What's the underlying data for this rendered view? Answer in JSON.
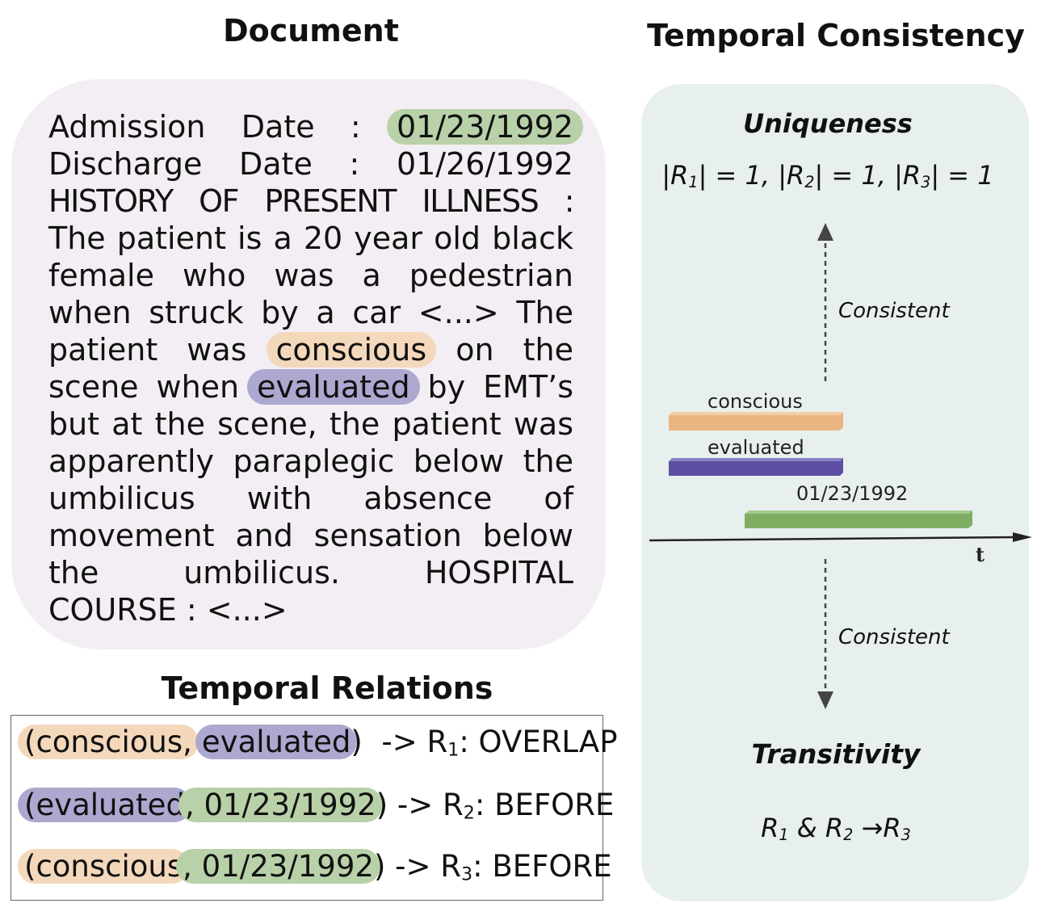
{
  "document": {
    "title": "Document",
    "lines": [
      [
        "Admission",
        "Date",
        ":"
      ],
      [
        "Discharge",
        "Date",
        ":",
        "01/26/1992"
      ],
      [
        "HISTORY OF PRESENT ILLNESS :"
      ],
      [
        "The patient is a 20 year old black"
      ],
      [
        "female",
        "who",
        "was",
        "a",
        "pedestrian"
      ],
      [
        "when struck by a car <...> The"
      ],
      [
        "patient",
        "was"
      ],
      [
        "scene when"
      ],
      [
        "but at the scene, the patient was"
      ],
      [
        "apparently paraplegic below the"
      ],
      [
        "umbilicus with absence of"
      ],
      [
        "movement and sensation below"
      ],
      [
        "the umbilicus. HOSPITAL"
      ],
      [
        "COURSE : <...>"
      ]
    ],
    "admission_date": "01/23/1992",
    "word_conscious": "conscious",
    "word_evaluated": "evaluated",
    "after_conscious": "on the",
    "after_evaluated": "by EMT’s"
  },
  "relations": {
    "title": "Temporal Relations",
    "items": [
      {
        "e1": "conscious",
        "e2": "evaluated",
        "rel": "OVERLAP",
        "r": "1"
      },
      {
        "e1": "evaluated",
        "e2": "01/23/1992",
        "rel": "BEFORE",
        "r": "2"
      },
      {
        "e1": "conscious",
        "e2": "01/23/1992",
        "rel": "BEFORE",
        "r": "3"
      }
    ]
  },
  "consistency": {
    "title": "Temporal Consistency",
    "uniqueness_title": "Uniqueness",
    "uniqueness_formula": "|R1| = 1, |R2| = 1, |R3| = 1",
    "consistent_label": "Consistent",
    "transitivity_title": "Transitivity",
    "transitivity_formula": "R1 & R2 →R3",
    "axis_label": "t",
    "bars": [
      {
        "label": "conscious",
        "color": "#eab481"
      },
      {
        "label": "evaluated",
        "color": "#5c4fa3"
      },
      {
        "label": "01/23/1992",
        "color": "#7fae63"
      }
    ]
  },
  "colors": {
    "orange": "#f4d8bc",
    "purple": "#aca8d0",
    "green": "#b9d1a8"
  }
}
